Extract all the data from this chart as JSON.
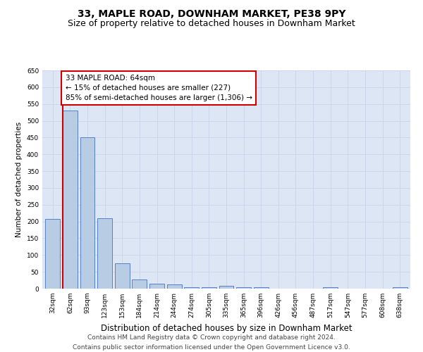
{
  "title": "33, MAPLE ROAD, DOWNHAM MARKET, PE38 9PY",
  "subtitle": "Size of property relative to detached houses in Downham Market",
  "xlabel": "Distribution of detached houses by size in Downham Market",
  "ylabel": "Number of detached properties",
  "categories": [
    "32sqm",
    "62sqm",
    "93sqm",
    "123sqm",
    "153sqm",
    "184sqm",
    "214sqm",
    "244sqm",
    "274sqm",
    "305sqm",
    "335sqm",
    "365sqm",
    "396sqm",
    "426sqm",
    "456sqm",
    "487sqm",
    "517sqm",
    "547sqm",
    "577sqm",
    "608sqm",
    "638sqm"
  ],
  "values": [
    208,
    530,
    450,
    210,
    75,
    27,
    15,
    12,
    4,
    4,
    8,
    4,
    5,
    0,
    0,
    0,
    5,
    0,
    0,
    0,
    5
  ],
  "bar_color": "#b8cce4",
  "bar_edge_color": "#4472c4",
  "vline_color": "#cc0000",
  "annotation_text": "33 MAPLE ROAD: 64sqm\n← 15% of detached houses are smaller (227)\n85% of semi-detached houses are larger (1,306) →",
  "annotation_box_color": "#ffffff",
  "annotation_edge_color": "#cc0000",
  "ylim": [
    0,
    650
  ],
  "yticks": [
    0,
    50,
    100,
    150,
    200,
    250,
    300,
    350,
    400,
    450,
    500,
    550,
    600,
    650
  ],
  "grid_color": "#c8d4e8",
  "background_color": "#dce6f5",
  "footer_line1": "Contains HM Land Registry data © Crown copyright and database right 2024.",
  "footer_line2": "Contains public sector information licensed under the Open Government Licence v3.0.",
  "title_fontsize": 10,
  "subtitle_fontsize": 9,
  "xlabel_fontsize": 8.5,
  "ylabel_fontsize": 7.5,
  "tick_fontsize": 6.5,
  "annotation_fontsize": 7.5,
  "footer_fontsize": 6.5
}
